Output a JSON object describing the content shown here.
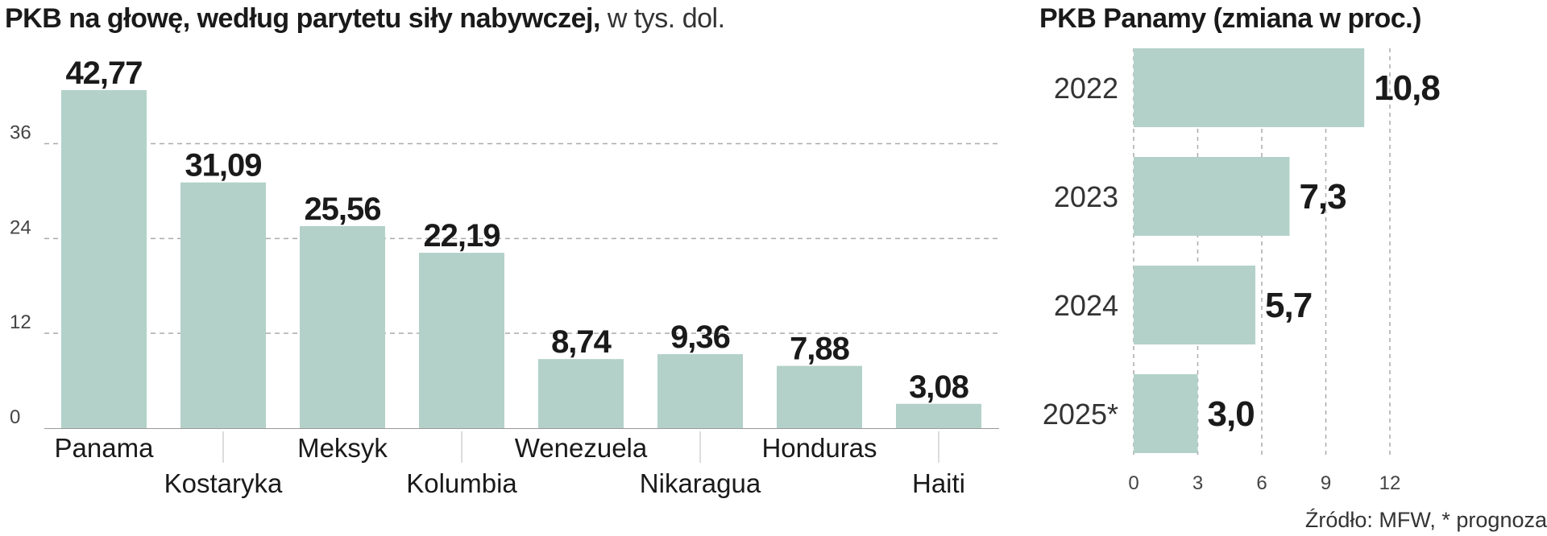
{
  "colors": {
    "bar": "#b3d1c9",
    "grid": "#aaaaaa",
    "text": "#1a1a1a",
    "axis": "#444444"
  },
  "left_chart": {
    "title_bold": "PKB na głowę, według parytetu siły nabywczej,",
    "title_unit": "w tys. dol."
  },
  "right_chart": {
    "title": "PKB Panamy (zmiana w proc.)"
  },
  "source": "Źródło: MFW, * prognoza",
  "chart_data": [
    {
      "type": "bar",
      "title": "PKB na głowę, według parytetu siły nabywczej, w tys. dol.",
      "categories": [
        "Panama",
        "Kostaryka",
        "Meksyk",
        "Kolumbia",
        "Wenezuela",
        "Nikaragua",
        "Honduras",
        "Haiti"
      ],
      "values": [
        42.77,
        31.09,
        25.56,
        22.19,
        8.74,
        9.36,
        7.88,
        3.08
      ],
      "value_labels": [
        "42,77",
        "31,09",
        "25,56",
        "22,19",
        "8,74",
        "9,36",
        "7,88",
        "3,08"
      ],
      "yticks": [
        0,
        12,
        24,
        36
      ],
      "ylim": [
        0,
        43
      ],
      "grid": true
    },
    {
      "type": "bar",
      "orientation": "horizontal",
      "title": "PKB Panamy (zmiana w proc.)",
      "categories": [
        "2022",
        "2023",
        "2024",
        "2025*"
      ],
      "values": [
        10.8,
        7.3,
        5.7,
        3.0
      ],
      "value_labels": [
        "10,8",
        "7,3",
        "5,7",
        "3,0"
      ],
      "xticks": [
        0,
        3,
        6,
        9,
        12
      ],
      "xlim": [
        0,
        12
      ],
      "grid": true
    }
  ]
}
